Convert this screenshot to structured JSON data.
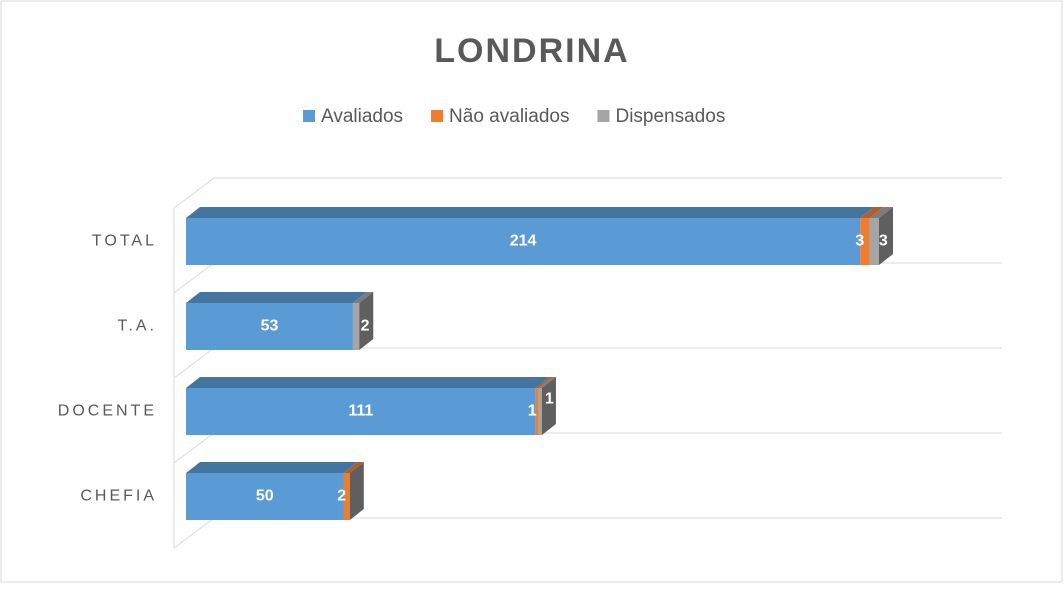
{
  "chart_data": {
    "type": "bar3d_stacked_horizontal",
    "title": "LONDRINA",
    "categories": [
      "TOTAL",
      "T.A.",
      "DOCENTE",
      "CHEFIA"
    ],
    "series": [
      {
        "name": "Avaliados",
        "color": "#5b9bd5",
        "values": [
          214,
          53,
          111,
          50
        ]
      },
      {
        "name": "Não avaliados",
        "color": "#ed7d31",
        "values": [
          3,
          null,
          1,
          2
        ]
      },
      {
        "name": "Dispensados",
        "color": "#a5a5a5",
        "values": [
          3,
          2,
          1,
          null
        ]
      }
    ],
    "legend": "top",
    "grid": true
  }
}
